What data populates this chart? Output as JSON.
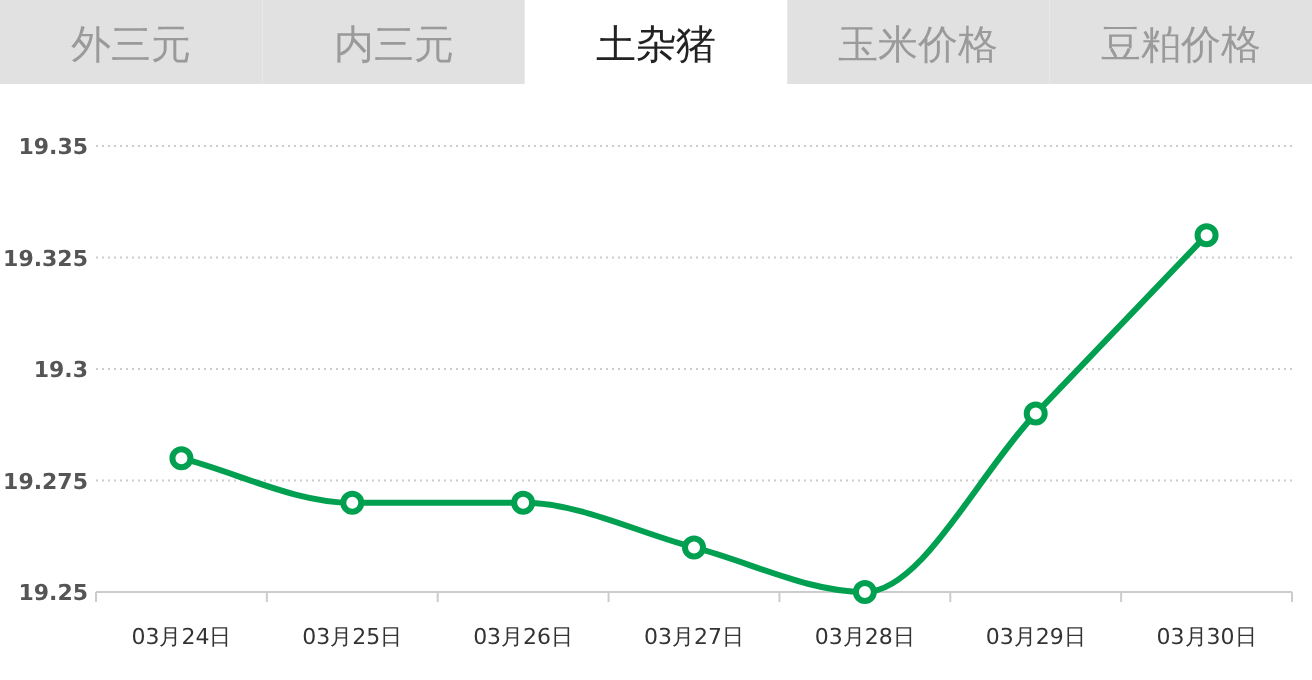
{
  "chart_data": {
    "type": "line",
    "title": "土杂猪",
    "annotations": [
      "外三元",
      "内三元",
      "玉米价格",
      "豆粕价格"
    ],
    "categories": [
      "03月24日",
      "03月25日",
      "03月26日",
      "03月27日",
      "03月28日",
      "03月29日",
      "03月30日"
    ],
    "series": [
      {
        "color": "#00a050",
        "values": [
          19.28,
          19.27,
          19.27,
          19.26,
          19.25,
          19.29,
          19.33
        ]
      }
    ],
    "ylim": [
      19.25,
      19.35
    ],
    "yticks": [
      19.25,
      19.275,
      19.3,
      19.325,
      19.35
    ],
    "grid": "y",
    "marker": "circle",
    "line_style": "solid"
  }
}
